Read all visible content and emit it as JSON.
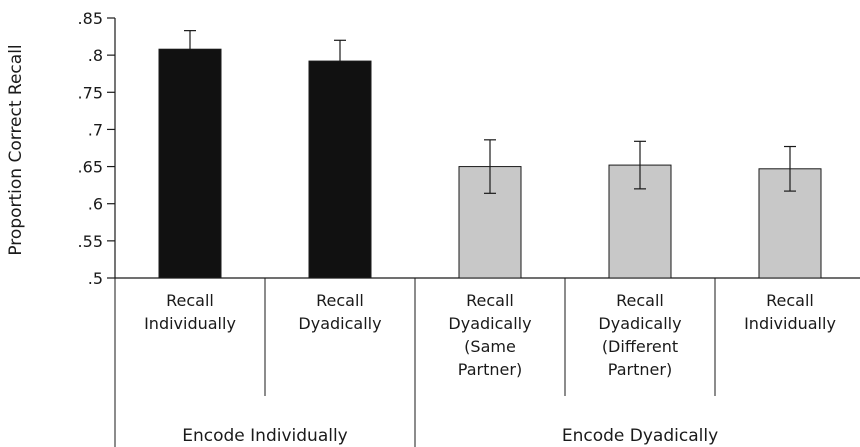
{
  "chart_data": {
    "type": "bar",
    "ylabel": "Proportion Correct Recall",
    "ylim": [
      0.5,
      0.85
    ],
    "yticks": [
      0.5,
      0.55,
      0.6,
      0.65,
      0.7,
      0.75,
      0.8,
      0.85
    ],
    "ytick_labels": [
      ".5",
      ".55",
      ".6",
      ".65",
      ".7",
      ".75",
      ".8",
      ".85"
    ],
    "grid": false,
    "bars": [
      {
        "label_lines": [
          "Recall",
          "Individually"
        ],
        "group": "Encode Individually",
        "value": 0.808,
        "error": 0.025,
        "color": "#111111"
      },
      {
        "label_lines": [
          "Recall",
          "Dyadically"
        ],
        "group": "Encode Individually",
        "value": 0.792,
        "error": 0.028,
        "color": "#111111"
      },
      {
        "label_lines": [
          "Recall",
          "Dyadically",
          "(Same",
          "Partner)"
        ],
        "group": "Encode Dyadically",
        "value": 0.65,
        "error": 0.036,
        "color": "#c8c8c8"
      },
      {
        "label_lines": [
          "Recall",
          "Dyadically",
          "(Different",
          "Partner)"
        ],
        "group": "Encode Dyadically",
        "value": 0.652,
        "error": 0.032,
        "color": "#c8c8c8"
      },
      {
        "label_lines": [
          "Recall",
          "Individually"
        ],
        "group": "Encode Dyadically",
        "value": 0.647,
        "error": 0.03,
        "color": "#c8c8c8"
      }
    ],
    "groups": [
      {
        "label": "Encode Individually",
        "span": [
          0,
          1
        ]
      },
      {
        "label": "Encode Dyadically",
        "span": [
          2,
          4
        ]
      }
    ]
  }
}
